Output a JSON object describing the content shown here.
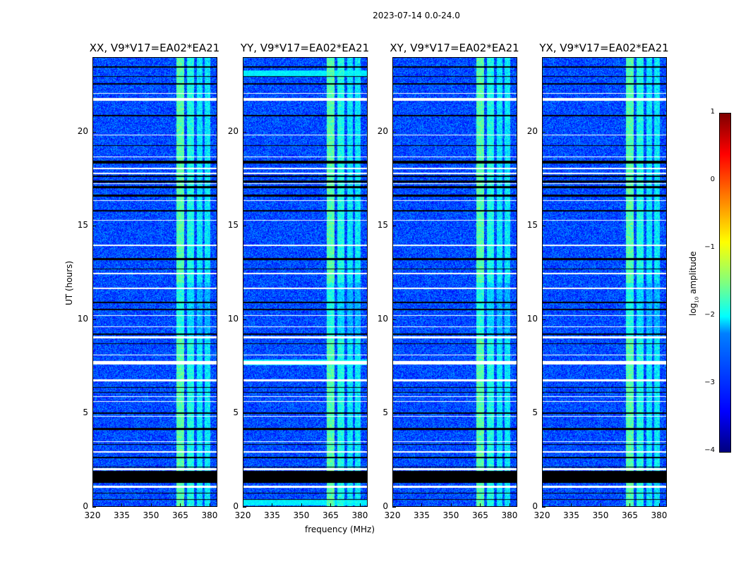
{
  "chart_data": {
    "type": "heatmap",
    "title": "2023-07-14 0.0-24.0",
    "xlabel": "frequency (MHz)",
    "ylabel": "UT (hours)",
    "xlim": [
      320,
      384
    ],
    "ylim": [
      0,
      24
    ],
    "xticks": [
      "320",
      "335",
      "350",
      "365",
      "380"
    ],
    "xtick_values": [
      320,
      335,
      350,
      365,
      380
    ],
    "yticks": [
      "0",
      "5",
      "10",
      "15",
      "20"
    ],
    "ytick_values": [
      0,
      5,
      10,
      15,
      20
    ],
    "panels": [
      {
        "title": "XX, V9*V17=EA02*EA21",
        "cyan_rows": []
      },
      {
        "title": "YY, V9*V17=EA02*EA21",
        "cyan_rows": [
          0.2,
          7.7,
          23.2
        ]
      },
      {
        "title": "XY, V9*V17=EA02*EA21",
        "cyan_rows": []
      },
      {
        "title": "YX, V9*V17=EA02*EA21",
        "cyan_rows": []
      }
    ],
    "background_log_amplitude": -3.0,
    "rfi_bands_mhz": [
      [
        363,
        367,
        -1.7
      ],
      [
        368.5,
        372,
        -2.0
      ],
      [
        373.5,
        376.5,
        -2.2
      ],
      [
        377.5,
        380.5,
        -2.2
      ]
    ],
    "flagged_black_hours": [
      [
        1.25,
        1.9
      ],
      [
        0.35,
        0.4
      ],
      [
        0.7,
        0.75
      ],
      [
        2.1,
        2.15
      ],
      [
        2.6,
        2.65
      ],
      [
        3.3,
        3.35
      ],
      [
        4.1,
        4.2
      ],
      [
        4.95,
        5.05
      ],
      [
        6.1,
        6.15
      ],
      [
        6.35,
        6.4
      ],
      [
        8.7,
        8.75
      ],
      [
        9.2,
        9.25
      ],
      [
        10.5,
        10.6
      ],
      [
        10.9,
        10.95
      ],
      [
        12.7,
        12.75
      ],
      [
        13.2,
        13.3
      ],
      [
        15.8,
        15.85
      ],
      [
        16.6,
        16.7
      ],
      [
        17.05,
        17.15
      ],
      [
        17.35,
        17.45
      ],
      [
        17.65,
        17.7
      ],
      [
        18.35,
        18.5
      ],
      [
        19.3,
        19.35
      ],
      [
        20.9,
        20.95
      ],
      [
        22.6,
        22.65
      ],
      [
        23.0,
        23.05
      ],
      [
        23.5,
        23.55
      ]
    ],
    "flagged_white_hours": [
      [
        1.0,
        1.1
      ],
      [
        1.95,
        2.05
      ],
      [
        2.9,
        2.95
      ],
      [
        3.45,
        3.5
      ],
      [
        4.8,
        4.85
      ],
      [
        5.6,
        5.65
      ],
      [
        5.85,
        5.9
      ],
      [
        6.7,
        6.8
      ],
      [
        7.6,
        7.8
      ],
      [
        8.1,
        8.15
      ],
      [
        9.0,
        9.1
      ],
      [
        9.6,
        9.65
      ],
      [
        10.2,
        10.25
      ],
      [
        11.65,
        11.7
      ],
      [
        12.45,
        12.5
      ],
      [
        13.95,
        14.0
      ],
      [
        15.3,
        15.35
      ],
      [
        16.35,
        16.4
      ],
      [
        17.25,
        17.3
      ],
      [
        17.8,
        17.85
      ],
      [
        18.05,
        18.15
      ],
      [
        18.7,
        18.75
      ],
      [
        19.85,
        19.9
      ],
      [
        21.7,
        21.85
      ],
      [
        22.1,
        22.15
      ]
    ],
    "colorbar": {
      "label": "log10 amplitude",
      "label_main": "log",
      "label_sub": "10",
      "label_rest": " amplitude",
      "range": [
        -4,
        1
      ],
      "ticks": [
        "1",
        "0",
        "−1",
        "−2",
        "−3",
        "−4"
      ],
      "tick_values": [
        1,
        0,
        -1,
        -2,
        -3,
        -4
      ],
      "colormap": "jet"
    }
  }
}
